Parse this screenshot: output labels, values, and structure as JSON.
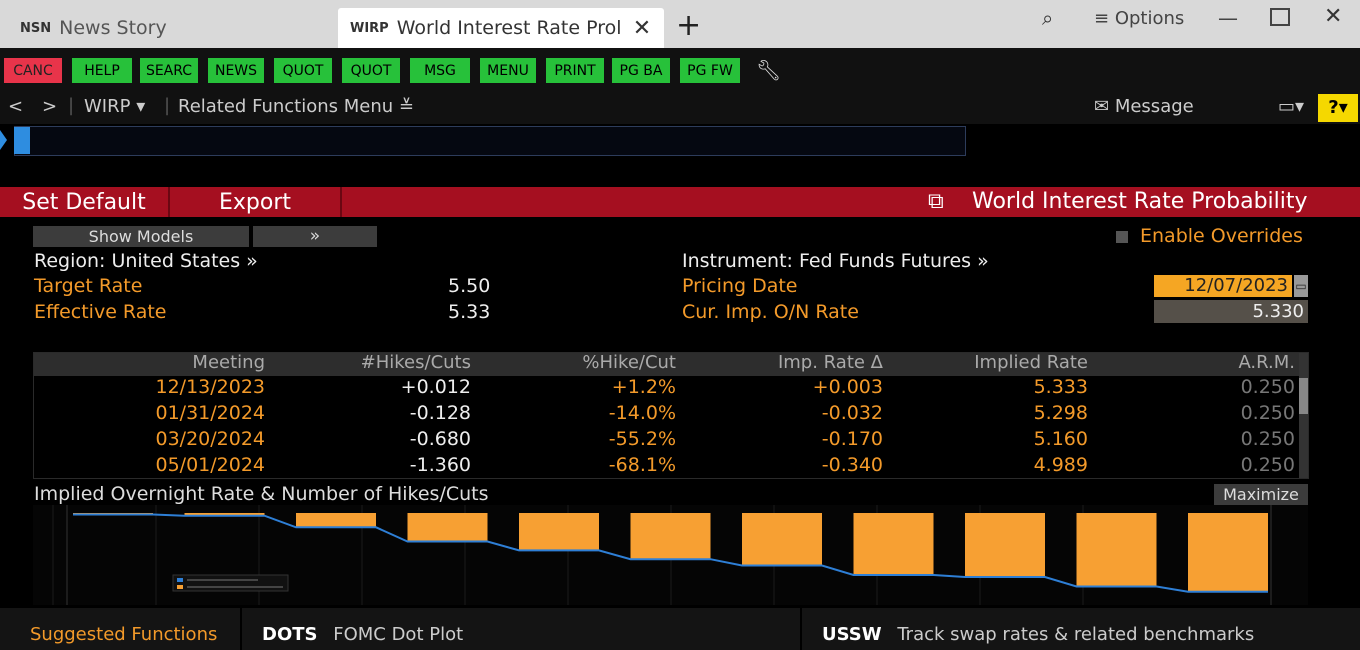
{
  "tabs": [
    {
      "code": "NSN",
      "title": "News Story"
    },
    {
      "code": "WIRP",
      "title": "World Interest Rate Prol"
    }
  ],
  "window": {
    "options_label": "Options"
  },
  "toolbar": {
    "buttons": [
      "CANC",
      "HELP",
      "SEARC",
      "NEWS",
      "QUOT",
      "QUOT",
      "MSG",
      "MENU",
      "PRINT",
      "PG BA",
      "PG FW"
    ]
  },
  "nav": {
    "function": "WIRP",
    "related": "Related Functions Menu",
    "message": "Message",
    "help": "?"
  },
  "actionbar": {
    "set_default": "Set Default",
    "export": "Export",
    "title": "World Interest Rate Probability"
  },
  "controls": {
    "show_models": "Show Models",
    "expand": "»",
    "enable_overrides": "Enable Overrides"
  },
  "summary": {
    "region": "Region: United States »",
    "target_label": "Target Rate",
    "target_value": "5.50",
    "effective_label": "Effective Rate",
    "effective_value": "5.33",
    "instrument": "Instrument: Fed Funds Futures »",
    "pricing_label": "Pricing Date",
    "pricing_value": "12/07/2023",
    "onrate_label": "Cur. Imp. O/N Rate",
    "onrate_value": "5.330"
  },
  "table": {
    "headers": [
      "Meeting",
      "#Hikes/Cuts",
      "%Hike/Cut",
      "Imp. Rate Δ",
      "Implied Rate",
      "A.R.M."
    ],
    "rows": [
      [
        "12/13/2023",
        "+0.012",
        "+1.2%",
        "+0.003",
        "5.333",
        "0.250"
      ],
      [
        "01/31/2024",
        "-0.128",
        "-14.0%",
        "-0.032",
        "5.298",
        "0.250"
      ],
      [
        "03/20/2024",
        "-0.680",
        "-55.2%",
        "-0.170",
        "5.160",
        "0.250"
      ],
      [
        "05/01/2024",
        "-1.360",
        "-68.1%",
        "-0.340",
        "4.989",
        "0.250"
      ]
    ]
  },
  "chart": {
    "title": "Implied Overnight Rate & Number of Hikes/Cuts",
    "maximize": "Maximize"
  },
  "chart_data": {
    "type": "bar",
    "bar_color": "#f7a033",
    "line_color": "#2e7fd6",
    "bars": [
      0.012,
      0.128,
      0.68,
      1.36,
      1.78,
      2.2,
      2.5,
      2.95,
      3.05,
      3.5,
      3.75
    ]
  },
  "footer": {
    "suggested": "Suggested Functions",
    "f1_code": "DOTS",
    "f1_desc": "FOMC Dot Plot",
    "f2_code": "USSW",
    "f2_desc": "Track swap rates & related benchmarks"
  }
}
